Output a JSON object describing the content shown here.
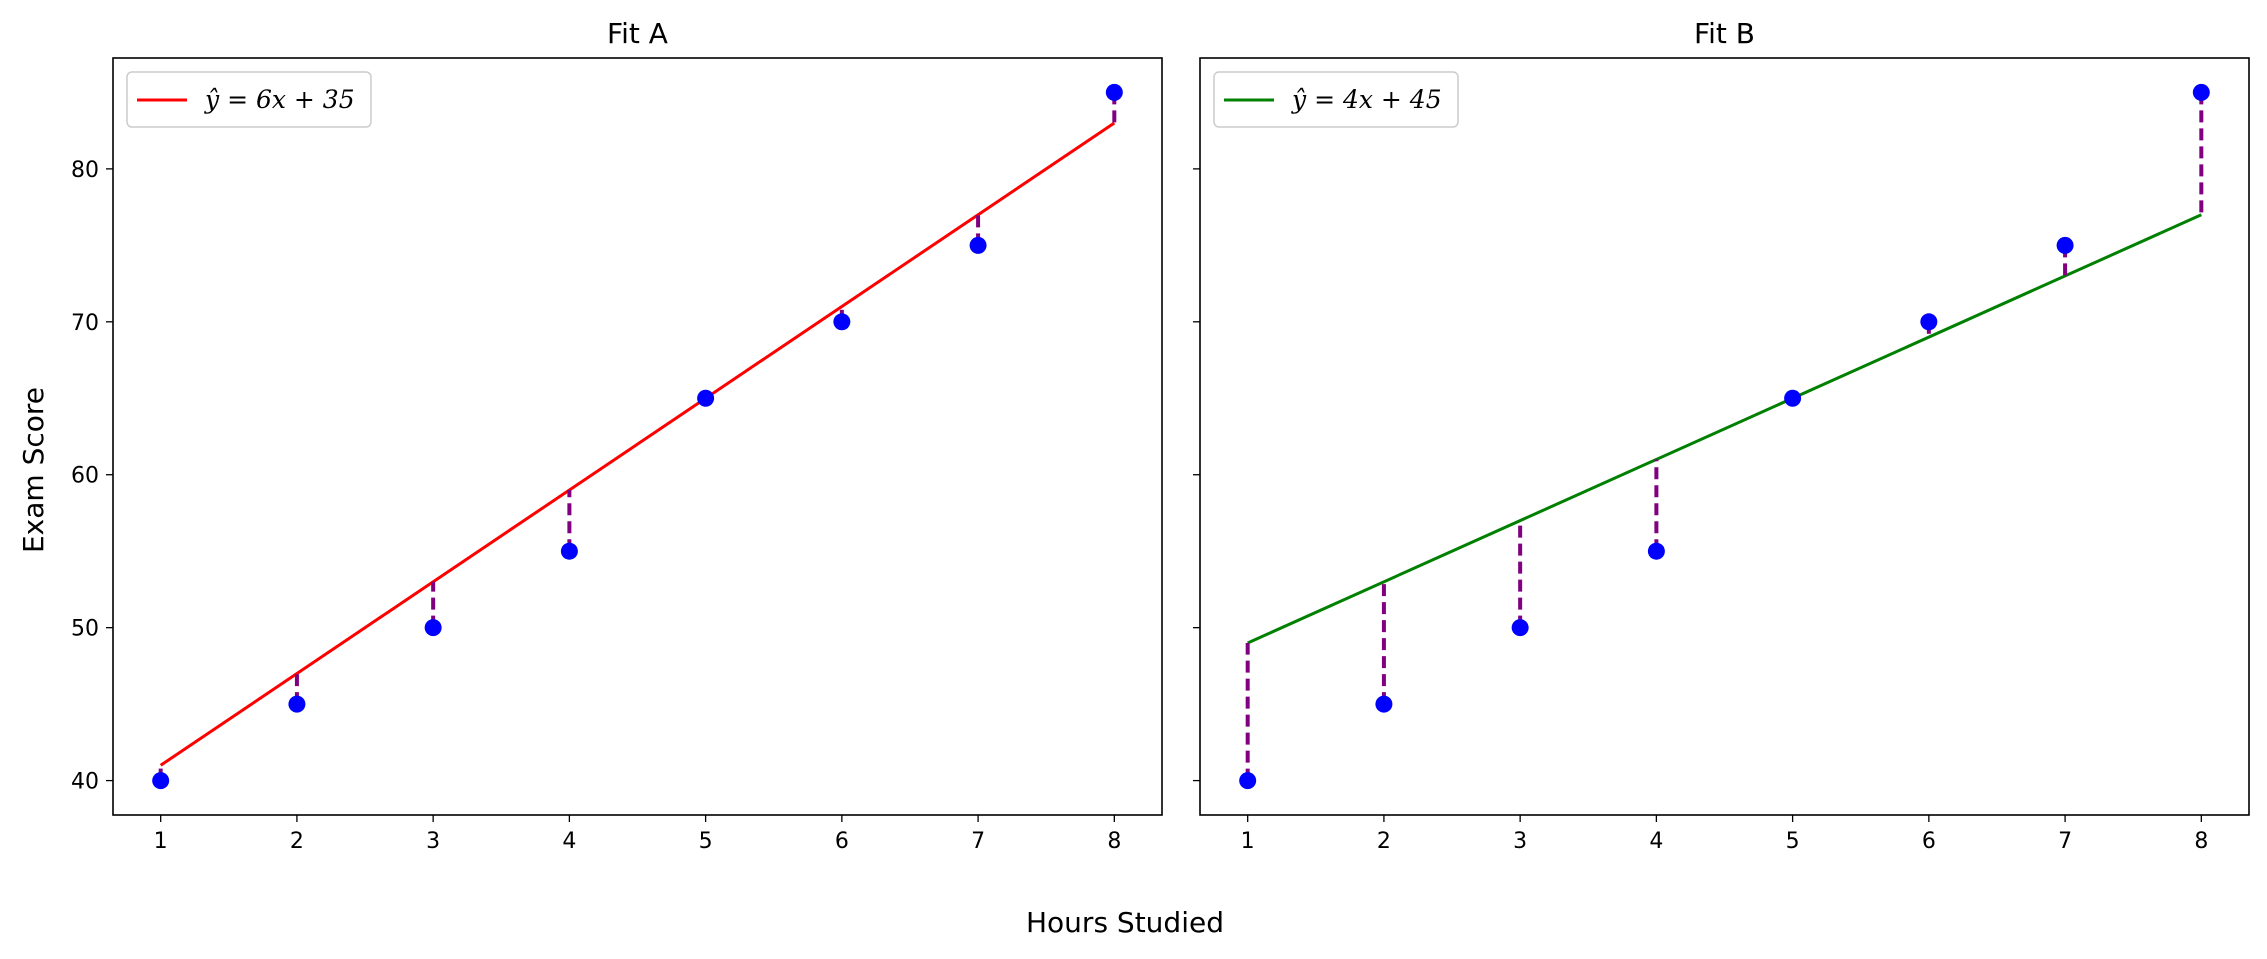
{
  "figure": {
    "xlabel": "Hours Studied",
    "ylabel": "Exam Score"
  },
  "chart_data": [
    {
      "type": "scatter",
      "title": "Fit A",
      "x": [
        1,
        2,
        3,
        4,
        5,
        6,
        7,
        8
      ],
      "y": [
        40,
        45,
        50,
        55,
        65,
        70,
        75,
        85
      ],
      "xlim": [
        0.65,
        8.35
      ],
      "ylim": [
        37.75,
        87.25
      ],
      "xticks": [
        1,
        2,
        3,
        4,
        5,
        6,
        7,
        8
      ],
      "yticks": [
        40,
        50,
        60,
        70,
        80
      ],
      "fit_line": {
        "slope": 6,
        "intercept": 35,
        "color": "#ff0000"
      },
      "legend": {
        "label": "ŷ = 6x + 35",
        "placement": "upper-left"
      },
      "residuals": {
        "style": "dashed",
        "color": "#800080"
      },
      "point_color": "#0000ff",
      "grid": false
    },
    {
      "type": "scatter",
      "title": "Fit B",
      "x": [
        1,
        2,
        3,
        4,
        5,
        6,
        7,
        8
      ],
      "y": [
        40,
        45,
        50,
        55,
        65,
        70,
        75,
        85
      ],
      "xlim": [
        0.65,
        8.35
      ],
      "ylim": [
        37.75,
        87.25
      ],
      "xticks": [
        1,
        2,
        3,
        4,
        5,
        6,
        7,
        8
      ],
      "yticks": [
        40,
        50,
        60,
        70,
        80
      ],
      "fit_line": {
        "slope": 4,
        "intercept": 45,
        "color": "#008000"
      },
      "legend": {
        "label": "ŷ = 4x + 45",
        "placement": "upper-left"
      },
      "residuals": {
        "style": "dashed",
        "color": "#800080"
      },
      "point_color": "#0000ff",
      "grid": false
    }
  ]
}
